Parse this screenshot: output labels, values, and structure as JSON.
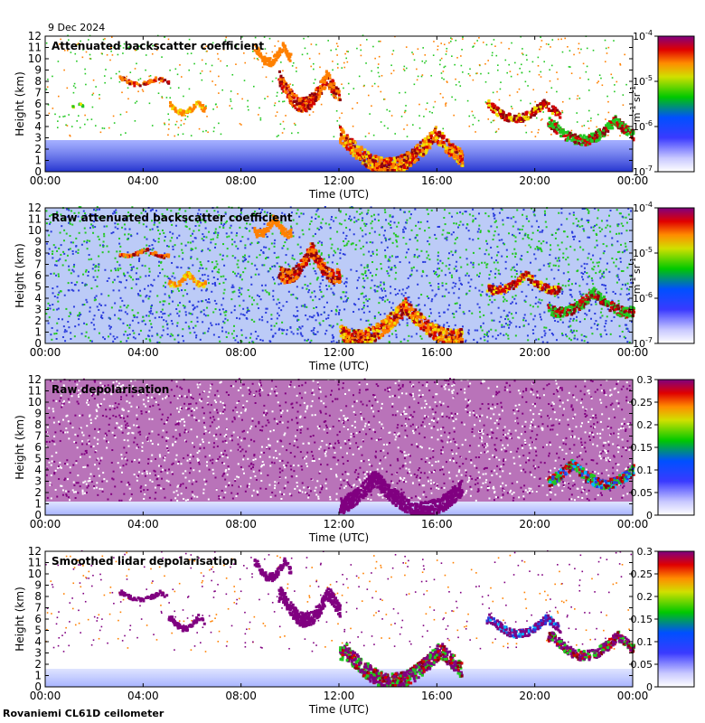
{
  "date": "9 Dec 2024",
  "footer": "Rovaniemi CL61D ceilometer",
  "colors": {
    "background_blue": "#3355ee",
    "noise_light": "#c9d2ff",
    "depol_purple": "#800080",
    "cloud_green": "#22cc22",
    "cloud_yellow": "#f0e000",
    "cloud_orange": "#ff8000",
    "cloud_red": "#d00000"
  },
  "chart_data": [
    {
      "type": "heatmap",
      "title": "Attenuated backscatter coefficient",
      "xlabel": "Time (UTC)",
      "ylabel": "Height (km)",
      "xlim": [
        "00:00",
        "00:00 (next day)"
      ],
      "ylim": [
        0,
        12
      ],
      "xticks": [
        "00:00",
        "04:00",
        "08:00",
        "12:00",
        "16:00",
        "20:00",
        "00:00"
      ],
      "yticks": [
        "0",
        "1",
        "2",
        "3",
        "4",
        "5",
        "6",
        "7",
        "8",
        "9",
        "10",
        "11",
        "12"
      ],
      "colorbar": {
        "scale": "log",
        "unit_html": "m<sup>-1</sup> sr<sup>-1</sup>",
        "unit": "m-1 sr-1",
        "ticks": [
          "10-7",
          "10-6",
          "10-5",
          "10-4"
        ]
      },
      "noise_mode": "sparse",
      "layers": [
        {
          "from": "00:00",
          "to": "24:00",
          "base_km": 0,
          "top_km": 2.8,
          "dominant": "blue"
        },
        {
          "from": "01:00",
          "to": "01:30",
          "base_km": 5.7,
          "top_km": 6.2,
          "dominant": "green/yellow"
        },
        {
          "from": "03:00",
          "to": "05:00",
          "base_km": 7.7,
          "top_km": 8.6,
          "dominant": "orange/red"
        },
        {
          "from": "05:00",
          "to": "06:30",
          "base_km": 5.1,
          "top_km": 6.5,
          "dominant": "orange/yellow"
        },
        {
          "from": "08:30",
          "to": "10:00",
          "base_km": 9.5,
          "top_km": 11.5,
          "dominant": "orange"
        },
        {
          "from": "09:30",
          "to": "12:00",
          "base_km": 5.5,
          "top_km": 9,
          "dominant": "orange/red"
        },
        {
          "from": "12:00",
          "to": "17:00",
          "base_km": 0,
          "top_km": 4,
          "dominant": "red/orange/yellow"
        },
        {
          "from": "18:00",
          "to": "21:00",
          "base_km": 4.5,
          "top_km": 6.5,
          "dominant": "yellow/red"
        },
        {
          "from": "20:30",
          "to": "24:00",
          "base_km": 2.5,
          "top_km": 5,
          "dominant": "red/green"
        }
      ]
    },
    {
      "type": "heatmap",
      "title": "Raw attenuated backscatter coefficient",
      "xlabel": "Time (UTC)",
      "ylabel": "Height (km)",
      "xlim": [
        "00:00",
        "00:00 (next day)"
      ],
      "ylim": [
        0,
        12
      ],
      "xticks": [
        "00:00",
        "04:00",
        "08:00",
        "12:00",
        "16:00",
        "20:00",
        "00:00"
      ],
      "yticks": [
        "0",
        "1",
        "2",
        "3",
        "4",
        "5",
        "6",
        "7",
        "8",
        "9",
        "10",
        "11",
        "12"
      ],
      "colorbar": {
        "scale": "log",
        "unit_html": "m<sup>-1</sup> sr<sup>-1</sup>",
        "unit": "m-1 sr-1",
        "ticks": [
          "10-7",
          "10-6",
          "10-5",
          "10-4"
        ]
      },
      "noise_mode": "dense_green",
      "layers": [
        {
          "from": "00:00",
          "to": "24:00",
          "base_km": 0,
          "top_km": 12,
          "dominant": "blue/green noise"
        },
        {
          "from": "03:00",
          "to": "05:00",
          "base_km": 7.7,
          "top_km": 8.6,
          "dominant": "orange/red"
        },
        {
          "from": "05:00",
          "to": "06:30",
          "base_km": 5.1,
          "top_km": 6.5,
          "dominant": "orange/yellow"
        },
        {
          "from": "08:30",
          "to": "10:00",
          "base_km": 9.5,
          "top_km": 11.5,
          "dominant": "orange"
        },
        {
          "from": "09:30",
          "to": "12:00",
          "base_km": 5.5,
          "top_km": 9,
          "dominant": "orange/red"
        },
        {
          "from": "12:00",
          "to": "17:00",
          "base_km": 0,
          "top_km": 4,
          "dominant": "red/orange/yellow"
        },
        {
          "from": "18:00",
          "to": "21:00",
          "base_km": 4.5,
          "top_km": 6.5,
          "dominant": "yellow/red"
        },
        {
          "from": "20:30",
          "to": "24:00",
          "base_km": 2.5,
          "top_km": 5,
          "dominant": "red/green"
        }
      ]
    },
    {
      "type": "heatmap",
      "title": "Raw depolarisation",
      "xlabel": "Time (UTC)",
      "ylabel": "Height (km)",
      "xlim": [
        "00:00",
        "00:00 (next day)"
      ],
      "ylim": [
        0,
        12
      ],
      "xticks": [
        "00:00",
        "04:00",
        "08:00",
        "12:00",
        "16:00",
        "20:00",
        "00:00"
      ],
      "yticks": [
        "0",
        "1",
        "2",
        "3",
        "4",
        "5",
        "6",
        "7",
        "8",
        "9",
        "10",
        "11",
        "12"
      ],
      "colorbar": {
        "scale": "linear",
        "ticks": [
          "0",
          "0.05",
          "0.1",
          "0.15",
          "0.2",
          "0.25",
          "0.3"
        ]
      },
      "noise_mode": "dense_purple",
      "layers": [
        {
          "from": "00:00",
          "to": "24:00",
          "base_km": 1.2,
          "top_km": 12,
          "dominant": "purple noise"
        },
        {
          "from": "12:00",
          "to": "17:00",
          "base_km": 0,
          "top_km": 4,
          "dominant": "purple"
        },
        {
          "from": "20:30",
          "to": "24:00",
          "base_km": 2.5,
          "top_km": 5,
          "dominant": "blue/green/red"
        }
      ]
    },
    {
      "type": "heatmap",
      "title": "Smoothed lidar depolarisation",
      "xlabel": "Time (UTC)",
      "ylabel": "Height (km)",
      "xlim": [
        "00:00",
        "00:00 (next day)"
      ],
      "ylim": [
        0,
        12
      ],
      "xticks": [
        "00:00",
        "04:00",
        "08:00",
        "12:00",
        "16:00",
        "20:00",
        "00:00"
      ],
      "yticks": [
        "0",
        "1",
        "2",
        "3",
        "4",
        "5",
        "6",
        "7",
        "8",
        "9",
        "10",
        "11",
        "12"
      ],
      "colorbar": {
        "scale": "linear",
        "ticks": [
          "0",
          "0.05",
          "0.1",
          "0.15",
          "0.2",
          "0.25",
          "0.3"
        ]
      },
      "noise_mode": "sparse_purple",
      "layers": [
        {
          "from": "00:00",
          "to": "24:00",
          "base_km": 0,
          "top_km": 1.6,
          "dominant": "light blue"
        },
        {
          "from": "03:00",
          "to": "05:00",
          "base_km": 7.7,
          "top_km": 8.6,
          "dominant": "purple"
        },
        {
          "from": "05:00",
          "to": "06:30",
          "base_km": 5.1,
          "top_km": 6.5,
          "dominant": "purple"
        },
        {
          "from": "08:30",
          "to": "10:00",
          "base_km": 9.5,
          "top_km": 11.5,
          "dominant": "purple"
        },
        {
          "from": "09:30",
          "to": "12:00",
          "base_km": 5.5,
          "top_km": 9,
          "dominant": "purple"
        },
        {
          "from": "12:00",
          "to": "17:00",
          "base_km": 0,
          "top_km": 4,
          "dominant": "purple with red/green edges"
        },
        {
          "from": "18:00",
          "to": "21:00",
          "base_km": 4.5,
          "top_km": 6.5,
          "dominant": "purple/blue"
        },
        {
          "from": "20:30",
          "to": "24:00",
          "base_km": 2.5,
          "top_km": 5,
          "dominant": "purple/red/green"
        }
      ]
    }
  ]
}
